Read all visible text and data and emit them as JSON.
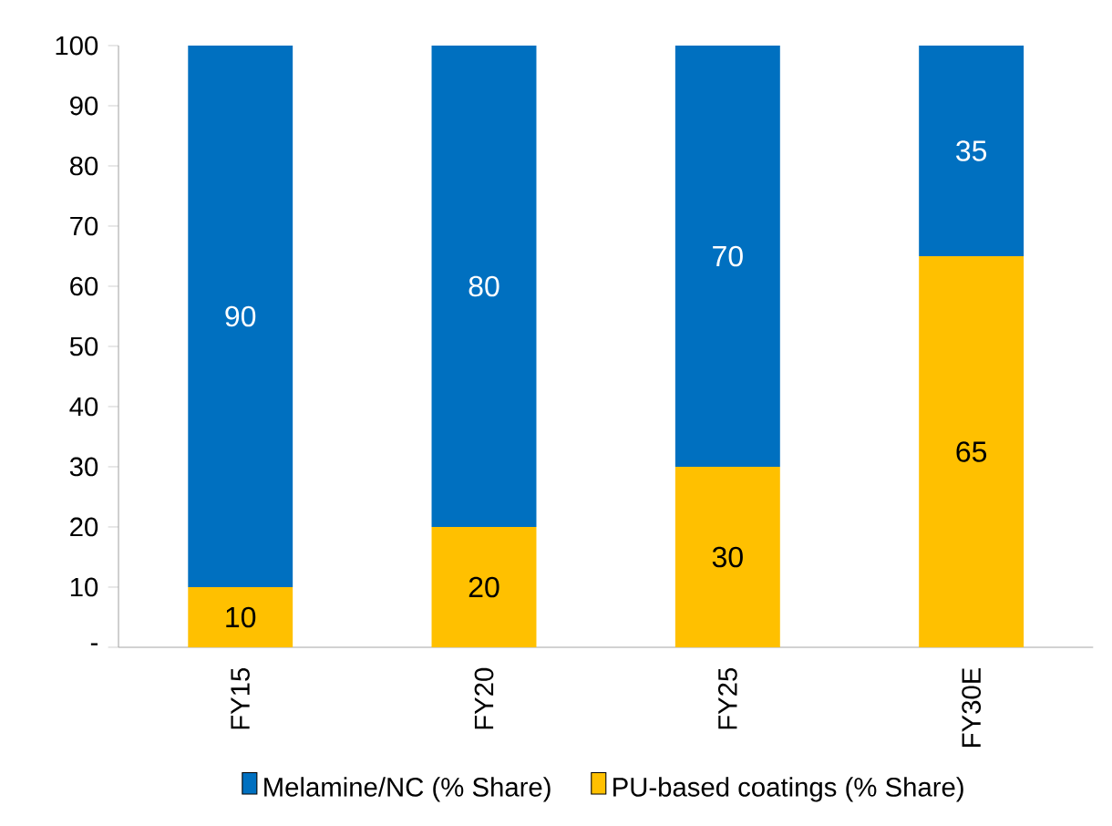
{
  "chart_data": {
    "type": "bar",
    "stacked": true,
    "categories": [
      "FY15",
      "FY20",
      "FY25",
      "FY30E"
    ],
    "series": [
      {
        "name": "PU-based coatings (% Share)",
        "color": "#ffc000",
        "values": [
          10,
          20,
          30,
          65
        ]
      },
      {
        "name": "Melamine/NC (% Share)",
        "color": "#0070c0",
        "values": [
          90,
          80,
          70,
          35
        ]
      }
    ],
    "ylim": [
      0,
      100
    ],
    "yticks": [
      {
        "value": 0,
        "label": "-"
      },
      10,
      20,
      30,
      40,
      50,
      60,
      70,
      80,
      90,
      100
    ],
    "data_labels": true,
    "legend": "bottom",
    "grid": false
  }
}
